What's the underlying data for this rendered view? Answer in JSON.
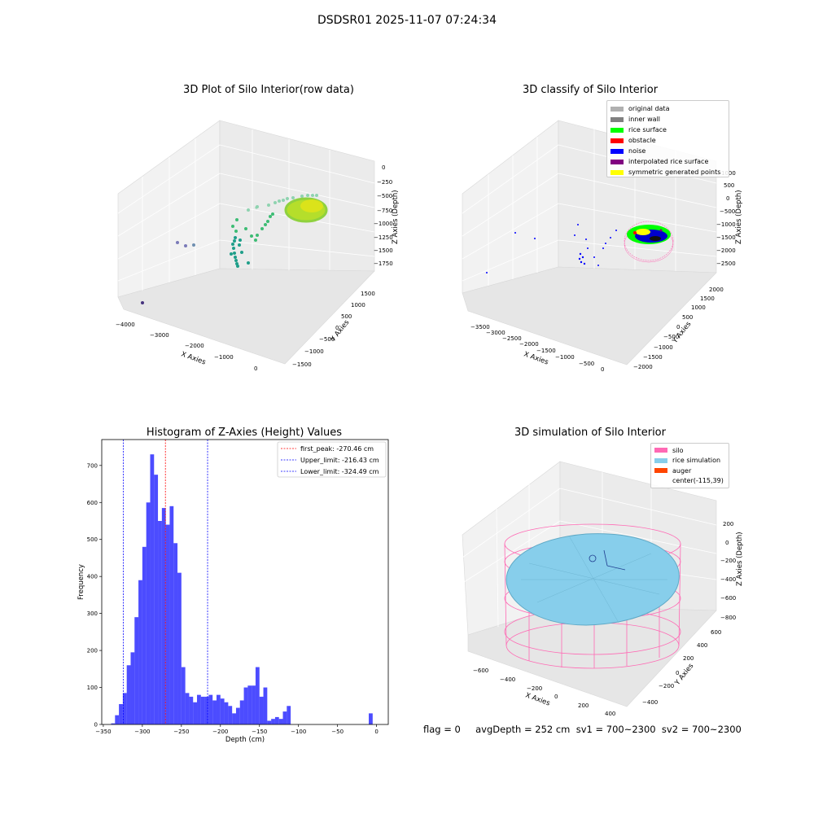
{
  "suptitle": "DSDSR01 2025-11-07 07:24:34",
  "panels": {
    "raw": {
      "title": "3D Plot of Silo Interior(row data)",
      "xlabel": "X Axies",
      "ylabel": "Y Axies",
      "zlabel": "Z Axies (Depth)",
      "xticks": [
        "−4000",
        "−3000",
        "−2000",
        "−1000",
        "0"
      ],
      "yticks": [
        "−1500",
        "−1000",
        "−500",
        "0",
        "500",
        "1000",
        "1500"
      ],
      "zticks": [
        "0",
        "−250",
        "−500",
        "−750",
        "−1000",
        "−1250",
        "−1500",
        "−1750"
      ]
    },
    "classify": {
      "title": "3D classify of Silo Interior",
      "xlabel": "X Axies",
      "ylabel": "Y Axies",
      "zlabel": "Z Axies (Depth)",
      "xticks": [
        "−3500",
        "−3000",
        "−2500",
        "−2000",
        "−1500",
        "−1000",
        "−500",
        "0"
      ],
      "yticks": [
        "−2000",
        "−1500",
        "−1000",
        "−500",
        "0",
        "500",
        "1000",
        "1500",
        "2000"
      ],
      "zticks": [
        "1000",
        "500",
        "0",
        "−500",
        "−1000",
        "−1500",
        "−2000",
        "−2500"
      ],
      "legend": [
        {
          "label": "original data",
          "color": "#b0b0b0"
        },
        {
          "label": "inner wall",
          "color": "#808080"
        },
        {
          "label": "rice surface",
          "color": "#00ff00"
        },
        {
          "label": "obstacle",
          "color": "#ff0000"
        },
        {
          "label": "noise",
          "color": "#0000ff"
        },
        {
          "label": "interpolated rice surface",
          "color": "#800080"
        },
        {
          "label": "symmetric generated points",
          "color": "#ffff00"
        }
      ]
    },
    "simulation": {
      "title": "3D simulation of Silo Interior",
      "xlabel": "X Axies",
      "ylabel": "Y Axies",
      "zlabel": "Z Axies (Depth)",
      "xticks": [
        "−600",
        "−400",
        "−200",
        "0",
        "200",
        "400"
      ],
      "yticks": [
        "−400",
        "−200",
        "0",
        "200",
        "400",
        "600"
      ],
      "zticks": [
        "200",
        "0",
        "−200",
        "−400",
        "−600",
        "−800"
      ],
      "legend": [
        {
          "label": "silo",
          "color": "#ff69b4"
        },
        {
          "label": "rice simulation",
          "color": "#87ceeb"
        },
        {
          "label": "auger",
          "color": "#ff4500"
        },
        {
          "label": "center(-115,39)",
          "color": ""
        }
      ]
    }
  },
  "chart_data": [
    {
      "type": "bar",
      "title": "Histogram of Z-Axies (Height) Values",
      "xlabel": "Depth (cm)",
      "ylabel": "Frequency",
      "bar_color": "#0000ff",
      "bin_start": -340,
      "bin_width": 5,
      "counts": [
        3,
        25,
        55,
        85,
        160,
        195,
        290,
        390,
        480,
        600,
        730,
        675,
        550,
        585,
        540,
        590,
        490,
        410,
        155,
        85,
        75,
        60,
        80,
        75,
        75,
        80,
        65,
        80,
        70,
        60,
        50,
        30,
        45,
        65,
        100,
        105,
        105,
        155,
        75,
        100,
        10,
        15,
        20,
        15,
        35,
        50,
        0,
        0,
        0,
        0,
        0,
        0,
        0,
        0,
        0,
        0,
        0,
        0,
        0,
        0,
        0,
        0,
        0,
        0,
        0,
        0,
        30
      ],
      "xlim": [
        -352,
        15
      ],
      "ylim": [
        0,
        770
      ],
      "xticks": [
        -350,
        -300,
        -250,
        -200,
        -150,
        -100,
        -50,
        0
      ],
      "yticks": [
        0,
        100,
        200,
        300,
        400,
        500,
        600,
        700
      ],
      "vlines": [
        {
          "label": "first_peak: -270.46 cm",
          "x": -270.46,
          "color": "#ff0000"
        },
        {
          "label": "Upper_limit: -216.43 cm",
          "x": -216.43,
          "color": "#0000ff"
        },
        {
          "label": "Lower_limit: -324.49 cm",
          "x": -324.49,
          "color": "#0000ff"
        }
      ]
    }
  ],
  "status_line": "flag = 0     avgDepth = 252 cm  sv1 = 700~2300  sv2 = 700~2300"
}
